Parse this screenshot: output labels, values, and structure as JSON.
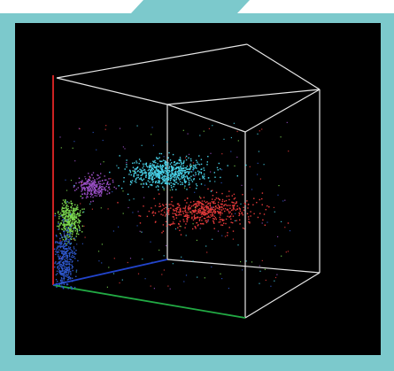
{
  "window": {
    "frame_color": "#7cc9cc",
    "background_color": "#000000",
    "tab_color": "#ffffff"
  },
  "plot": {
    "type": "3d-scatter",
    "axis_colors": {
      "x": "#22aa44",
      "y": "#cc2222",
      "z": "#2244cc",
      "box": "#e6e6e6"
    },
    "clusters": [
      {
        "color": "#48d0e6"
      },
      {
        "color": "#e43a3a"
      },
      {
        "color": "#9a4fc6"
      },
      {
        "color": "#7ad64f"
      },
      {
        "color": "#2d56c8"
      }
    ]
  }
}
